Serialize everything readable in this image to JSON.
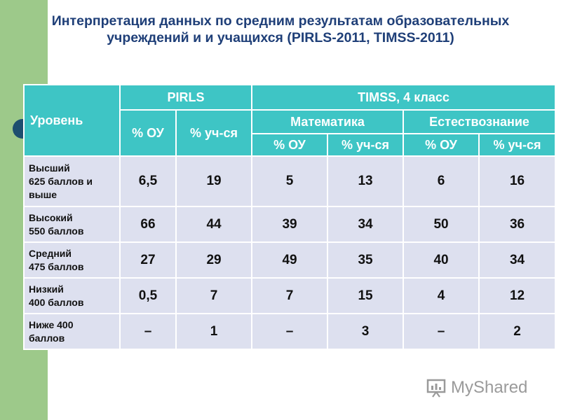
{
  "title": "Интерпретация данных по средним результатам образовательных учреждений и и учащихся (PIRLS-2011, TIMSS-2011)",
  "table": {
    "header": {
      "level": "Уровень",
      "pirls": "PIRLS",
      "timss": "TIMSS, 4 класс",
      "math": "Математика",
      "science": "Естествознание",
      "pct_ou": "% ОУ",
      "pct_students": "% уч-ся"
    },
    "rows": [
      {
        "label_line1": "Высший",
        "label_line2": "625 баллов и выше",
        "values": [
          "6,5",
          "19",
          "5",
          "13",
          "6",
          "16"
        ]
      },
      {
        "label_line1": "Высокий",
        "label_line2": "550 баллов",
        "values": [
          "66",
          "44",
          "39",
          "34",
          "50",
          "36"
        ]
      },
      {
        "label_line1": "Средний",
        "label_line2": "475 баллов",
        "values": [
          "27",
          "29",
          "49",
          "35",
          "40",
          "34"
        ]
      },
      {
        "label_line1": "Низкий",
        "label_line2": "400 баллов",
        "values": [
          "0,5",
          "7",
          "7",
          "15",
          "4",
          "12"
        ]
      },
      {
        "label_line1": "Ниже 400",
        "label_line2": "баллов",
        "values": [
          "–",
          "1",
          "–",
          "3",
          "–",
          "2"
        ]
      }
    ]
  },
  "watermark": {
    "text": "MyShared",
    "icon": "chart-presentation-icon"
  },
  "colors": {
    "sidebar": "#9dc98a",
    "header_bg": "#3ec5c5",
    "cell_bg": "#dde0ef",
    "title": "#1f3f78"
  }
}
